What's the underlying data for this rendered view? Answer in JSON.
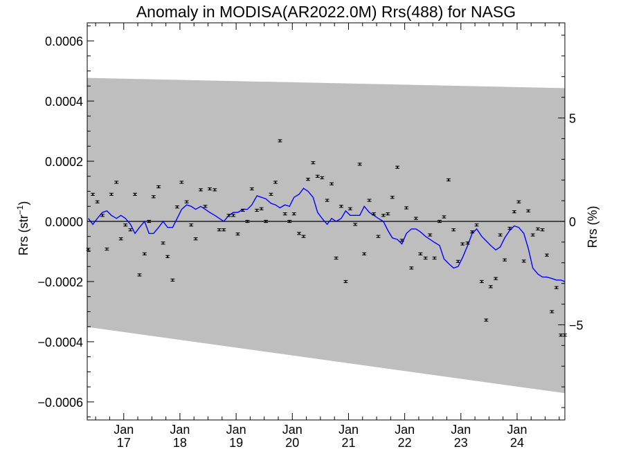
{
  "chart_data": {
    "type": "scatter",
    "title": "Anomaly in MODISA(AR2022.0M) Rrs(488) for NASG",
    "ylabel": "Rrs (str",
    "ylabel_sup": "−1",
    "ylabel_suffix": ")",
    "y2label": "Rrs (%)",
    "xlim": [
      2016.35,
      2024.85
    ],
    "ylim": [
      -0.00066,
      0.00066
    ],
    "y2lim": [
      -9.6,
      9.6
    ],
    "yticks": [
      {
        "v": 0.0006,
        "label": "0.0006"
      },
      {
        "v": 0.0004,
        "label": "0.0004"
      },
      {
        "v": 0.0002,
        "label": "0.0002"
      },
      {
        "v": 0.0,
        "label": "0.0000"
      },
      {
        "v": -0.0002,
        "label": "−0.0002"
      },
      {
        "v": -0.0004,
        "label": "−0.0004"
      },
      {
        "v": -0.0006,
        "label": "−0.0006"
      }
    ],
    "y2ticks": [
      {
        "v": 5,
        "label": "5"
      },
      {
        "v": 0,
        "label": "0"
      },
      {
        "v": -5,
        "label": "−5"
      }
    ],
    "xticks": [
      {
        "v": 2017.0,
        "month": "Jan",
        "year": "17"
      },
      {
        "v": 2018.0,
        "month": "Jan",
        "year": "18"
      },
      {
        "v": 2019.0,
        "month": "Jan",
        "year": "19"
      },
      {
        "v": 2020.0,
        "month": "Jan",
        "year": "20"
      },
      {
        "v": 2021.0,
        "month": "Jan",
        "year": "21"
      },
      {
        "v": 2022.0,
        "month": "Jan",
        "year": "22"
      },
      {
        "v": 2023.0,
        "month": "Jan",
        "year": "23"
      },
      {
        "v": 2024.0,
        "month": "Jan",
        "year": "24"
      }
    ],
    "envelope": {
      "x": [
        2016.35,
        2024.85
      ],
      "upper": [
        0.000477,
        0.000443
      ],
      "lower": [
        -0.000351,
        -0.000571
      ],
      "color": "#bebebe"
    },
    "zero_line": 0.0,
    "colors": {
      "points": "#000000",
      "running_mean": "#0000ff"
    },
    "points": {
      "x": [
        2016.37,
        2016.45,
        2016.53,
        2016.62,
        2016.7,
        2016.78,
        2016.87,
        2016.95,
        2017.03,
        2017.12,
        2017.2,
        2017.28,
        2017.37,
        2017.45,
        2017.53,
        2017.62,
        2017.7,
        2017.78,
        2017.87,
        2017.95,
        2018.03,
        2018.12,
        2018.2,
        2018.28,
        2018.37,
        2018.45,
        2018.53,
        2018.62,
        2018.7,
        2018.78,
        2018.87,
        2018.95,
        2019.03,
        2019.12,
        2019.2,
        2019.28,
        2019.37,
        2019.45,
        2019.53,
        2019.62,
        2019.7,
        2019.78,
        2019.87,
        2019.95,
        2020.03,
        2020.12,
        2020.2,
        2020.28,
        2020.37,
        2020.45,
        2020.53,
        2020.62,
        2020.7,
        2020.78,
        2020.87,
        2020.95,
        2021.03,
        2021.12,
        2021.2,
        2021.28,
        2021.37,
        2021.45,
        2021.53,
        2021.62,
        2021.7,
        2021.78,
        2021.87,
        2021.95,
        2022.03,
        2022.12,
        2022.2,
        2022.28,
        2022.37,
        2022.45,
        2022.53,
        2022.62,
        2022.7,
        2022.78,
        2022.87,
        2022.95,
        2023.03,
        2023.12,
        2023.2,
        2023.28,
        2023.37,
        2023.45,
        2023.53,
        2023.62,
        2023.7,
        2023.78,
        2023.87,
        2023.95,
        2024.03,
        2024.12,
        2024.2,
        2024.28,
        2024.37,
        2024.45,
        2024.53,
        2024.62,
        2024.7,
        2024.78,
        2024.85
      ],
      "y": [
        -9.3e-05,
        9e-05,
        6.5e-05,
        2e-05,
        -9.2e-05,
        9e-05,
        0.00013,
        -5.8e-05,
        -1.2e-05,
        -2.8e-05,
        9e-05,
        -0.000178,
        -0.000108,
        0.0,
        8.2e-05,
        0.000115,
        -7.2e-05,
        -0.000117,
        -0.000195,
        4.8e-05,
        0.00013,
        6.5e-05,
        -1.2e-05,
        -5.8e-05,
        0.000105,
        5e-05,
        0.000108,
        0.000105,
        -2.8e-05,
        -2.8e-05,
        2e-05,
        2e-05,
        -4.2e-05,
        3.7e-05,
        0.0,
        0.000108,
        3.7e-05,
        4.2e-05,
        0.0,
        9e-05,
        0.00013,
        0.000268,
        2.5e-05,
        0.0,
        2.5e-05,
        -4e-05,
        -5e-05,
        0.00014,
        0.000195,
        0.00015,
        0.000145,
        7e-05,
        0.000125,
        -0.000122,
        5e-05,
        -0.0002,
        4.2e-05,
        -1e-05,
        0.00019,
        -0.000108,
        7e-05,
        2.5e-05,
        -5e-05,
        2e-05,
        2.5e-05,
        8e-05,
        0.00018,
        -6.3e-05,
        4.5e-05,
        -0.000155,
        1e-05,
        -0.000108,
        -0.000122,
        -4.5e-05,
        -0.000122,
        0.0,
        1.5e-05,
        0.000138,
        -2.8e-05,
        -0.000133,
        -7.5e-05,
        -7.2e-05,
        -3.5e-05,
        -1.2e-05,
        -0.0002,
        -0.000328,
        -0.000217,
        -0.00019,
        -4.5e-05,
        -0.000128,
        -2.3e-05,
        3.2e-05,
        6.5e-05,
        -0.000132,
        3.5e-05,
        -4.5e-05,
        -2.5e-05,
        -2.8e-05,
        -0.000112,
        -0.0003,
        -0.00022,
        -0.000378,
        -0.000378
      ]
    },
    "running_mean": {
      "x": [
        2016.37,
        2016.45,
        2016.53,
        2016.62,
        2016.7,
        2016.78,
        2016.87,
        2016.95,
        2017.03,
        2017.12,
        2017.2,
        2017.28,
        2017.37,
        2017.45,
        2017.53,
        2017.62,
        2017.7,
        2017.78,
        2017.87,
        2017.95,
        2018.03,
        2018.12,
        2018.2,
        2018.28,
        2018.37,
        2018.45,
        2018.53,
        2018.62,
        2018.7,
        2018.78,
        2018.87,
        2018.95,
        2019.03,
        2019.12,
        2019.2,
        2019.28,
        2019.37,
        2019.45,
        2019.53,
        2019.62,
        2019.7,
        2019.78,
        2019.87,
        2019.95,
        2020.03,
        2020.12,
        2020.2,
        2020.28,
        2020.37,
        2020.45,
        2020.53,
        2020.62,
        2020.7,
        2020.78,
        2020.87,
        2020.95,
        2021.03,
        2021.12,
        2021.2,
        2021.28,
        2021.37,
        2021.45,
        2021.53,
        2021.62,
        2021.7,
        2021.78,
        2021.87,
        2021.95,
        2022.03,
        2022.12,
        2022.2,
        2022.28,
        2022.37,
        2022.45,
        2022.53,
        2022.62,
        2022.7,
        2022.78,
        2022.87,
        2022.95,
        2023.03,
        2023.12,
        2023.2,
        2023.28,
        2023.37,
        2023.45,
        2023.53,
        2023.62,
        2023.7,
        2023.78,
        2023.87,
        2023.95,
        2024.03,
        2024.12,
        2024.2,
        2024.28,
        2024.37,
        2024.45,
        2024.53,
        2024.62,
        2024.7,
        2024.78,
        2024.85
      ],
      "y": [
        1e-05,
        -1e-05,
        1e-05,
        3e-05,
        3.5e-05,
        2e-05,
        1e-05,
        2e-05,
        1e-05,
        -1e-05,
        -4e-05,
        -2e-05,
        0.0,
        -4e-05,
        -4e-05,
        -2e-05,
        0.0,
        -2e-05,
        -2e-05,
        1e-05,
        4e-05,
        5.5e-05,
        5e-05,
        4e-05,
        5e-05,
        4e-05,
        3e-05,
        2e-05,
        1e-05,
        0.0,
        2e-05,
        3e-05,
        3e-05,
        4e-05,
        4e-05,
        5.5e-05,
        8.5e-05,
        8e-05,
        7.5e-05,
        6e-05,
        5.5e-05,
        4.5e-05,
        5.5e-05,
        5e-05,
        8e-05,
        9e-05,
        0.00011,
        0.0001,
        8e-05,
        3e-05,
        1e-05,
        -1e-05,
        1e-05,
        0.0,
        1e-05,
        3.5e-05,
        2e-05,
        2e-05,
        2e-05,
        5e-05,
        3e-05,
        2e-05,
        1e-05,
        0.0,
        -3e-05,
        -5.5e-05,
        -6e-05,
        -7.5e-05,
        -4e-05,
        -2.5e-05,
        -2.5e-05,
        -3.5e-05,
        -5e-05,
        -6e-05,
        -7e-05,
        -8e-05,
        -0.000125,
        -0.00014,
        -0.000155,
        -0.00015,
        -0.00012,
        -8e-05,
        -4e-05,
        -2.5e-05,
        -5e-05,
        -6.5e-05,
        -8e-05,
        -9.5e-05,
        -8.5e-05,
        -5.5e-05,
        -3e-05,
        -1.5e-05,
        -2e-05,
        -4e-05,
        -9e-05,
        -0.000155,
        -0.000175,
        -0.000185,
        -0.000185,
        -0.00019,
        -0.000195,
        -0.000195,
        -0.0002
      ]
    }
  }
}
